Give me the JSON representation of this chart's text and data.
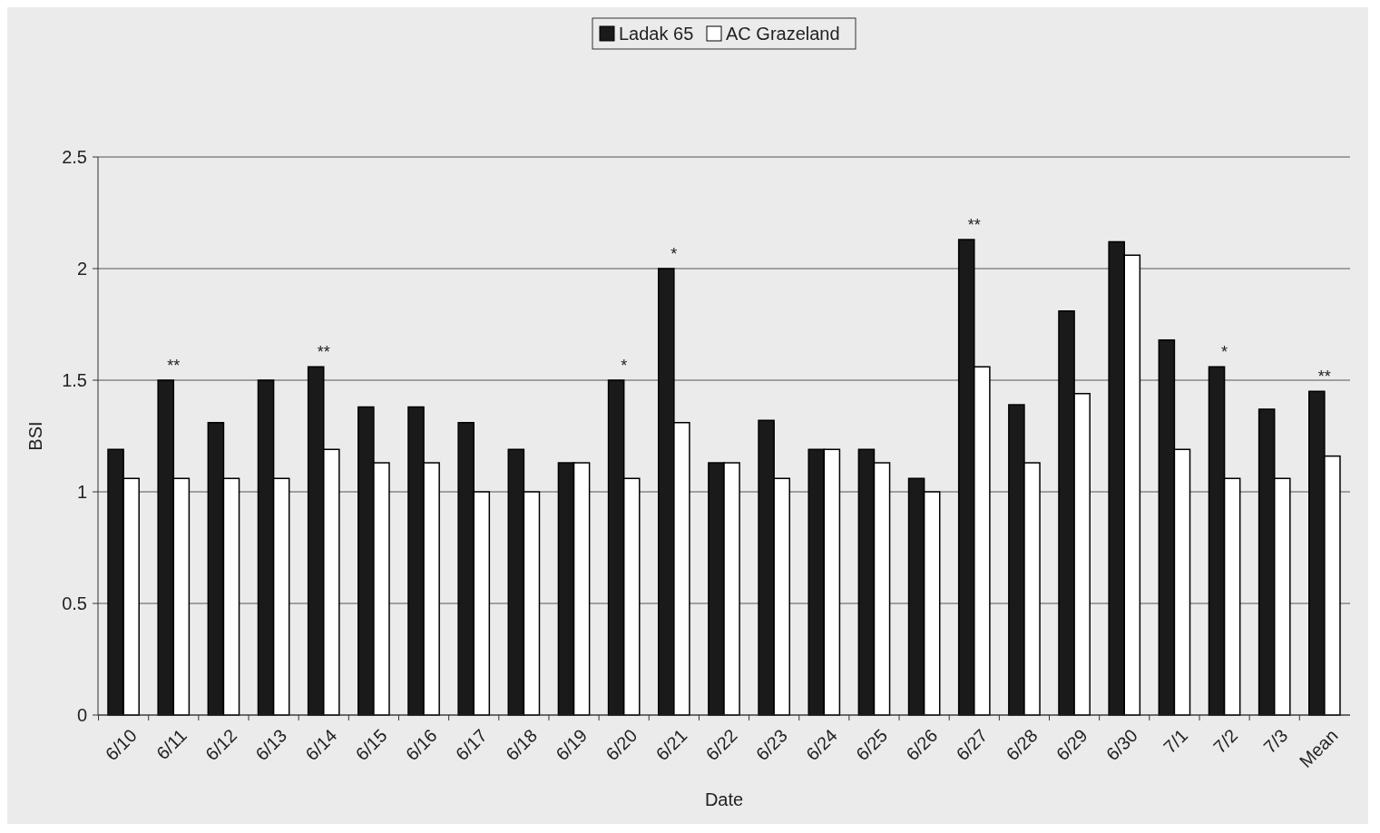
{
  "chart_data": {
    "type": "bar",
    "xlabel": "Date",
    "ylabel": "BSI",
    "categories": [
      "6/10",
      "6/11",
      "6/12",
      "6/13",
      "6/14",
      "6/15",
      "6/16",
      "6/17",
      "6/18",
      "6/19",
      "6/20",
      "6/21",
      "6/22",
      "6/23",
      "6/24",
      "6/25",
      "6/26",
      "6/27",
      "6/28",
      "6/29",
      "6/30",
      "7/1",
      "7/2",
      "7/3",
      "Mean"
    ],
    "series": [
      {
        "name": "Ladak 65",
        "color": "#1a1a1a",
        "values": [
          1.19,
          1.5,
          1.31,
          1.5,
          1.56,
          1.38,
          1.38,
          1.31,
          1.19,
          1.13,
          1.5,
          2.0,
          1.13,
          1.32,
          1.19,
          1.19,
          1.06,
          2.13,
          1.39,
          1.81,
          2.12,
          1.68,
          1.56,
          1.37,
          1.45
        ]
      },
      {
        "name": "AC Grazeland",
        "color": "#ffffff",
        "values": [
          1.06,
          1.06,
          1.06,
          1.06,
          1.19,
          1.13,
          1.13,
          1.0,
          1.0,
          1.13,
          1.06,
          1.31,
          1.13,
          1.06,
          1.19,
          1.13,
          1.0,
          1.56,
          1.13,
          1.44,
          2.06,
          1.19,
          1.06,
          1.06,
          1.16
        ]
      }
    ],
    "ylim": [
      0,
      2.5
    ],
    "yticks": [
      0,
      0.5,
      1,
      1.5,
      2,
      2.5
    ],
    "grid": "y",
    "legend": "top",
    "annotations": [
      {
        "text": "**",
        "x": "6/11",
        "y": 1.5
      },
      {
        "text": "**",
        "x": "6/14",
        "y": 1.56
      },
      {
        "text": "*",
        "x": "6/20",
        "y": 1.5
      },
      {
        "text": "*",
        "x": "6/21",
        "y": 2.0
      },
      {
        "text": "**",
        "x": "6/27",
        "y": 2.13
      },
      {
        "text": "*",
        "x": "7/2",
        "y": 1.56
      },
      {
        "text": "**",
        "x": "Mean",
        "y": 1.45
      }
    ]
  }
}
